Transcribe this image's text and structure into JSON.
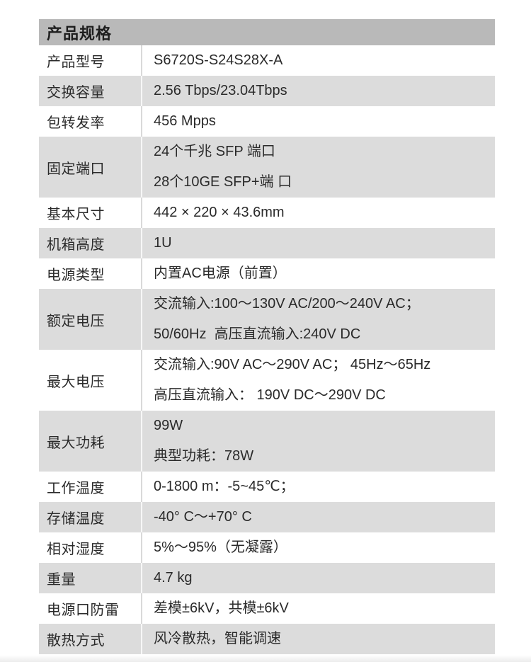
{
  "table": {
    "title": "产品规格",
    "colors": {
      "header_bg": "#b9b9b9",
      "alt_row_bg": "#dcdcdc",
      "row_bg": "#ffffff",
      "text": "#2a2a2a",
      "divider_on_white": "#d9d9d9",
      "divider_on_gray": "#f7f7f7"
    },
    "rows": [
      {
        "label": "产品型号",
        "lines": [
          "S6720S-S24S28X-A"
        ],
        "alt": false
      },
      {
        "label": "交换容量",
        "lines": [
          "2.56 Tbps/23.04Tbps"
        ],
        "alt": true
      },
      {
        "label": "包转发率",
        "lines": [
          "456 Mpps"
        ],
        "alt": false
      },
      {
        "label": "固定端口",
        "lines": [
          "24个千兆 SFP 端口",
          "28个10GE SFP+端 口"
        ],
        "alt": true
      },
      {
        "label": "基本尺寸",
        "lines": [
          "442 × 220 × 43.6mm"
        ],
        "alt": false
      },
      {
        "label": "机箱高度",
        "lines": [
          "1U"
        ],
        "alt": true
      },
      {
        "label": "电源类型",
        "lines": [
          "内置AC电源（前置）"
        ],
        "alt": false
      },
      {
        "label": "额定电压",
        "lines": [
          "交流输入:100～130V AC/200～240V AC；",
          "50/60Hz  高压直流输入:240V DC"
        ],
        "alt": true
      },
      {
        "label": "最大电压",
        "lines": [
          "交流输入:90V AC～290V AC； 45Hz～65Hz",
          "高压直流输入： 190V DC～290V DC"
        ],
        "alt": false
      },
      {
        "label": "最大功耗",
        "lines": [
          "99W",
          "典型功耗：78W"
        ],
        "alt": true
      },
      {
        "label": "工作温度",
        "lines": [
          "0-1800 m：-5~45℃；"
        ],
        "alt": false
      },
      {
        "label": "存储温度",
        "lines": [
          "-40° C～+70° C"
        ],
        "alt": true
      },
      {
        "label": "相对湿度",
        "lines": [
          "5%～95%（无凝露）"
        ],
        "alt": false
      },
      {
        "label": "重量",
        "lines": [
          "4.7 kg"
        ],
        "alt": true
      },
      {
        "label": "电源口防雷",
        "lines": [
          "差模±6kV，共模±6kV"
        ],
        "alt": false
      },
      {
        "label": "散热方式",
        "lines": [
          "风冷散热，智能调速"
        ],
        "alt": true
      }
    ]
  }
}
